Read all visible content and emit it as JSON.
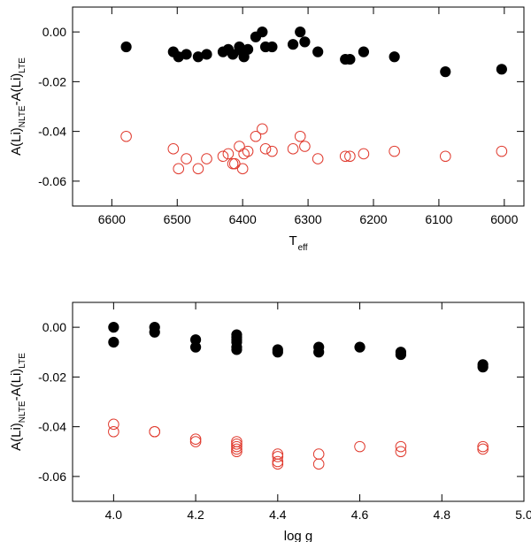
{
  "chart_data": [
    {
      "type": "scatter",
      "xlabel": "T",
      "xlabel_sub": "eff",
      "ylabel_parts": [
        "A(Li)",
        "NLTE",
        "-A(Li)",
        "LTE"
      ],
      "xlim": [
        6660,
        5970
      ],
      "ylim": [
        -0.07,
        0.01
      ],
      "x_reversed": true,
      "xticks": [
        6600,
        6500,
        6400,
        6300,
        6200,
        6100,
        6000
      ],
      "xtick_labels": [
        "6600",
        "6500",
        "6400",
        "6300",
        "6200",
        "6100",
        "6000"
      ],
      "yticks": [
        0.0,
        -0.02,
        -0.04,
        -0.06
      ],
      "ytick_labels": [
        "0.00",
        "-0.02",
        "-0.04",
        "-0.06"
      ],
      "grid": false,
      "legend": "none",
      "series": [
        {
          "marker": "filled-circle",
          "color": "#000000",
          "points": [
            [
              6578,
              -0.006
            ],
            [
              6506,
              -0.008
            ],
            [
              6498,
              -0.01
            ],
            [
              6486,
              -0.009
            ],
            [
              6468,
              -0.01
            ],
            [
              6455,
              -0.009
            ],
            [
              6430,
              -0.008
            ],
            [
              6422,
              -0.007
            ],
            [
              6415,
              -0.009
            ],
            [
              6405,
              -0.006
            ],
            [
              6400,
              -0.008
            ],
            [
              6398,
              -0.01
            ],
            [
              6392,
              -0.007
            ],
            [
              6380,
              -0.002
            ],
            [
              6370,
              0.0
            ],
            [
              6365,
              -0.006
            ],
            [
              6355,
              -0.006
            ],
            [
              6323,
              -0.005
            ],
            [
              6312,
              0.0
            ],
            [
              6305,
              -0.004
            ],
            [
              6285,
              -0.008
            ],
            [
              6243,
              -0.011
            ],
            [
              6236,
              -0.011
            ],
            [
              6215,
              -0.008
            ],
            [
              6168,
              -0.01
            ],
            [
              6090,
              -0.016
            ],
            [
              6004,
              -0.015
            ]
          ]
        },
        {
          "marker": "open-circle",
          "color": "#e03a2e",
          "points": [
            [
              6578,
              -0.042
            ],
            [
              6506,
              -0.047
            ],
            [
              6498,
              -0.055
            ],
            [
              6486,
              -0.051
            ],
            [
              6468,
              -0.055
            ],
            [
              6455,
              -0.051
            ],
            [
              6430,
              -0.05
            ],
            [
              6422,
              -0.049
            ],
            [
              6415,
              -0.053
            ],
            [
              6412,
              -0.053
            ],
            [
              6405,
              -0.046
            ],
            [
              6400,
              -0.055
            ],
            [
              6398,
              -0.049
            ],
            [
              6392,
              -0.048
            ],
            [
              6380,
              -0.042
            ],
            [
              6370,
              -0.039
            ],
            [
              6365,
              -0.047
            ],
            [
              6355,
              -0.048
            ],
            [
              6323,
              -0.047
            ],
            [
              6312,
              -0.042
            ],
            [
              6305,
              -0.046
            ],
            [
              6285,
              -0.051
            ],
            [
              6243,
              -0.05
            ],
            [
              6236,
              -0.05
            ],
            [
              6215,
              -0.049
            ],
            [
              6168,
              -0.048
            ],
            [
              6090,
              -0.05
            ],
            [
              6004,
              -0.048
            ]
          ]
        }
      ]
    },
    {
      "type": "scatter",
      "xlabel": "log g",
      "ylabel_parts": [
        "A(Li)",
        "NLTE",
        "-A(Li)",
        "LTE"
      ],
      "xlim": [
        3.9,
        5.0
      ],
      "ylim": [
        -0.07,
        0.01
      ],
      "x_reversed": false,
      "xticks": [
        4.0,
        4.2,
        4.4,
        4.6,
        4.8,
        5.0
      ],
      "xtick_labels": [
        "4.0",
        "4.2",
        "4.4",
        "4.6",
        "4.8",
        "5.0"
      ],
      "yticks": [
        0.0,
        -0.02,
        -0.04,
        -0.06
      ],
      "ytick_labels": [
        "0.00",
        "-0.02",
        "-0.04",
        "-0.06"
      ],
      "grid": false,
      "legend": "none",
      "series": [
        {
          "marker": "filled-circle",
          "color": "#000000",
          "points": [
            [
              4.0,
              0.0
            ],
            [
              4.0,
              -0.006
            ],
            [
              4.1,
              0.0
            ],
            [
              4.1,
              -0.002
            ],
            [
              4.2,
              -0.005
            ],
            [
              4.2,
              -0.008
            ],
            [
              4.3,
              -0.003
            ],
            [
              4.3,
              -0.004
            ],
            [
              4.3,
              -0.005
            ],
            [
              4.3,
              -0.006
            ],
            [
              4.3,
              -0.008
            ],
            [
              4.3,
              -0.009
            ],
            [
              4.4,
              -0.009
            ],
            [
              4.4,
              -0.01
            ],
            [
              4.5,
              -0.008
            ],
            [
              4.5,
              -0.01
            ],
            [
              4.6,
              -0.008
            ],
            [
              4.7,
              -0.01
            ],
            [
              4.7,
              -0.011
            ],
            [
              4.9,
              -0.015
            ],
            [
              4.9,
              -0.016
            ]
          ]
        },
        {
          "marker": "open-circle",
          "color": "#e03a2e",
          "points": [
            [
              4.0,
              -0.039
            ],
            [
              4.0,
              -0.042
            ],
            [
              4.1,
              -0.042
            ],
            [
              4.1,
              -0.042
            ],
            [
              4.2,
              -0.045
            ],
            [
              4.2,
              -0.046
            ],
            [
              4.3,
              -0.046
            ],
            [
              4.3,
              -0.047
            ],
            [
              4.3,
              -0.048
            ],
            [
              4.3,
              -0.049
            ],
            [
              4.3,
              -0.05
            ],
            [
              4.4,
              -0.051
            ],
            [
              4.4,
              -0.052
            ],
            [
              4.4,
              -0.054
            ],
            [
              4.4,
              -0.055
            ],
            [
              4.5,
              -0.051
            ],
            [
              4.5,
              -0.055
            ],
            [
              4.6,
              -0.048
            ],
            [
              4.7,
              -0.048
            ],
            [
              4.7,
              -0.05
            ],
            [
              4.9,
              -0.048
            ],
            [
              4.9,
              -0.049
            ]
          ]
        }
      ]
    }
  ]
}
